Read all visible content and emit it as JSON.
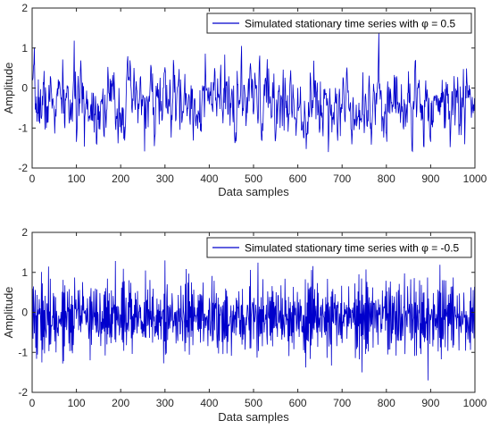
{
  "chart_data": [
    {
      "type": "line",
      "title": "",
      "xlabel": "Data samples",
      "ylabel": "Amplitude",
      "xlim": [
        0,
        1000
      ],
      "ylim": [
        -2,
        2
      ],
      "xticks": [
        "0",
        "100",
        "200",
        "300",
        "400",
        "500",
        "600",
        "700",
        "800",
        "900",
        "1000"
      ],
      "yticks": [
        "2",
        "1",
        "0",
        "-1",
        "-2"
      ],
      "grid": false,
      "legend_position": "top-right",
      "series": [
        {
          "name": "Simulated stationary time series with φ = 0.5",
          "phi": 0.5,
          "n_points": 1000,
          "y_min": -1.6,
          "y_max": 1.4,
          "color": "#0000cc"
        }
      ]
    },
    {
      "type": "line",
      "title": "",
      "xlabel": "Data samples",
      "ylabel": "Amplitude",
      "xlim": [
        0,
        1000
      ],
      "ylim": [
        -2,
        2
      ],
      "xticks": [
        "0",
        "100",
        "200",
        "300",
        "400",
        "500",
        "600",
        "700",
        "800",
        "900",
        "1000"
      ],
      "yticks": [
        "2",
        "1",
        "0",
        "-1",
        "-2"
      ],
      "grid": false,
      "legend_position": "top-right",
      "series": [
        {
          "name": "Simulated stationary time series with φ = -0.5",
          "phi": -0.5,
          "n_points": 1000,
          "y_min": -1.7,
          "y_max": 1.3,
          "color": "#0000cc"
        }
      ]
    }
  ]
}
